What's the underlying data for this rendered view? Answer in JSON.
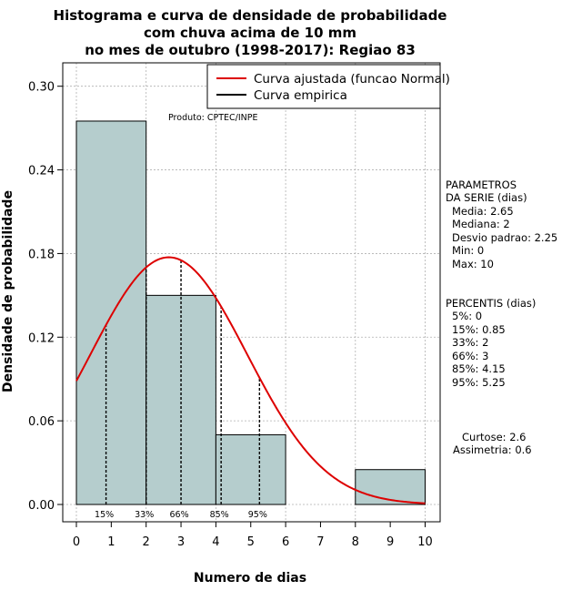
{
  "chart_data": {
    "type": "bar",
    "title": [
      "Histograma e curva de densidade de probabilidade",
      "com chuva acima de 10 mm",
      "no mes de outubro (1998-2017): Regiao 83"
    ],
    "xlabel": "Numero de dias",
    "ylabel": "Densidade de probabilidade",
    "xlim": [
      0,
      10
    ],
    "ylim": [
      0,
      0.3
    ],
    "x_ticks": [
      "0",
      "1",
      "2",
      "3",
      "4",
      "5",
      "6",
      "7",
      "8",
      "9",
      "10"
    ],
    "y_ticks": [
      "0.00",
      "0.06",
      "0.12",
      "0.18",
      "0.24",
      "0.30"
    ],
    "bins": [
      {
        "start": 0,
        "end": 2,
        "density": 0.275
      },
      {
        "start": 2,
        "end": 4,
        "density": 0.15
      },
      {
        "start": 4,
        "end": 6,
        "density": 0.05
      },
      {
        "start": 6,
        "end": 8,
        "density": 0.0
      },
      {
        "start": 8,
        "end": 10,
        "density": 0.025
      }
    ],
    "bar_color": "#b5cdcd",
    "fitted_curve": {
      "name": "Curva ajustada (funcao Normal)",
      "color": "#dd0000",
      "mean": 2.65,
      "sd": 2.25
    },
    "empirical_curve": {
      "name": "Curva empirica",
      "color": "#000000"
    },
    "percentile_markers": [
      {
        "label": "15%",
        "x": 0.85
      },
      {
        "label": "33%",
        "x": 2
      },
      {
        "label": "66%",
        "x": 3
      },
      {
        "label": "85%",
        "x": 4.15
      },
      {
        "label": "95%",
        "x": 5.25
      }
    ],
    "annotation": "Produto: CPTEC/INPE",
    "parametros": {
      "heading": [
        "PARAMETROS",
        "DA SERIE (dias)"
      ],
      "lines": [
        "Media: 2.65",
        "Mediana: 2",
        "Desvio padrao: 2.25",
        "Min: 0",
        "Max: 10"
      ]
    },
    "percentis": {
      "heading": "PERCENTIS (dias)",
      "lines": [
        "5%: 0",
        "15%: 0.85",
        "33%: 2",
        "66%: 3",
        "85%: 4.15",
        "95%: 5.25"
      ]
    },
    "shape": {
      "lines": [
        "Curtose: 2.6",
        "Assimetria: 0.6"
      ]
    }
  }
}
